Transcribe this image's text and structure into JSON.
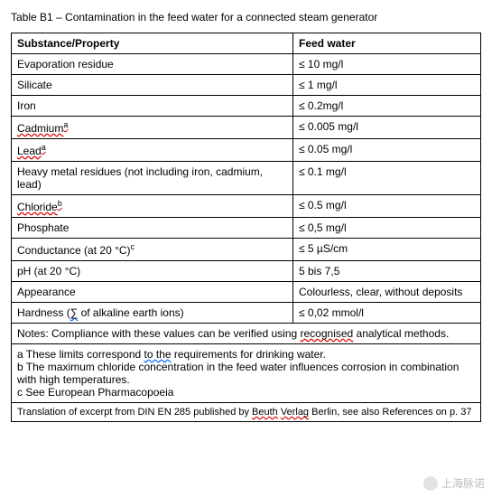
{
  "caption": "Table B1 – Contamination in the feed water for a connected steam generator",
  "headers": {
    "col1": "Substance/Property",
    "col2": "Feed water"
  },
  "rows": [
    {
      "c1_plain": "Evaporation residue",
      "c2": "≤ 10 mg/l"
    },
    {
      "c1_plain": "Silicate",
      "c2": "≤ 1 mg/l"
    },
    {
      "c1_plain": "Iron",
      "c2": "≤ 0.2mg/l"
    },
    {
      "c1_squiggle_red": "Cadmium",
      "c1_sup": "a",
      "c2": "≤ 0.005 mg/l"
    },
    {
      "c1_squiggle_red": "Lead",
      "c1_sup": "a",
      "c2": "≤ 0.05 mg/l"
    },
    {
      "c1_plain": "Heavy metal residues (not including iron, cadmium, lead)",
      "c2": "≤ 0.1 mg/l"
    },
    {
      "c1_squiggle_red": "Chloride",
      "c1_sup_squiggle": "b",
      "c2": "≤ 0.5 mg/l"
    },
    {
      "c1_plain": "Phosphate",
      "c2": "≤ 0,5 mg/l"
    },
    {
      "c1_plain": "Conductance (at 20 °C)",
      "c1_sup_plain": "c",
      "c2": "≤ 5 µS/cm"
    },
    {
      "c1_plain": "pH (at 20 °C)",
      "c2": "5 bis 7,5"
    },
    {
      "c1_plain": "Appearance",
      "c2": "Colourless, clear, without deposits"
    },
    {
      "c1_pre": "Hardness (",
      "c1_sym": "∑",
      "c1_post": " of alkaline earth ions)",
      "c2": "  ≤ 0,02 mmol/l"
    }
  ],
  "notes": {
    "pre": "Notes: Compliance with these values can be verified using ",
    "squiggle": "recognised",
    "post": " analytical methods."
  },
  "footnotes": {
    "a_pre": "a These limits correspond ",
    "a_sq": "to the",
    "a_post": " requirements for drinking water.",
    "b": "b The maximum chloride concentration in the feed water influences corrosion in combination with high temperatures.",
    "c": "c See European Pharmacopoeia"
  },
  "translation": {
    "pre": "Translation of excerpt from DIN EN 285 published by ",
    "sq1": "Beuth",
    "mid1": " ",
    "sq2": "Verlag",
    "mid2": " Berlin, see also References on p. 37"
  },
  "watermark": "上海脉诺"
}
